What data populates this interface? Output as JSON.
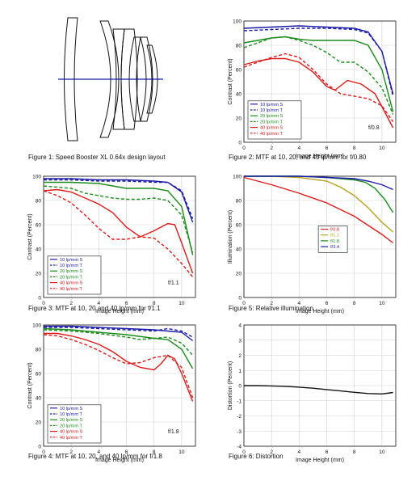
{
  "captions": {
    "fig1": "Figure 1:  Speed Booster XL 0.64x design layout",
    "fig2": "Figure 2:  MTF at 10, 20, and 40 lp/mm for f/0.80",
    "fig3": "Figure 3:  MTF at 10, 20 and 40 lp/mm for f/1.1",
    "fig4": "Figure 4:  MTF at 10, 20, and 40 lp/mm for f/1.8",
    "fig5": "Figure 5:  Relative illumination",
    "fig6": "Figure 6:  Distortion"
  },
  "chart_data": [
    {
      "id": "fig2",
      "type": "line",
      "xlabel": "Image Height (mm)",
      "ylabel": "Contrast (Percent)",
      "xlim": [
        0,
        11
      ],
      "ylim": [
        0,
        100
      ],
      "xticks": [
        0,
        2,
        4,
        6,
        8,
        10
      ],
      "yticks": [
        0,
        20,
        40,
        60,
        80,
        100
      ],
      "annotation": "f/0.8",
      "legend_position": "bottom-left",
      "series": [
        {
          "name": "10 lp/mm S",
          "color": "#1a1aa8",
          "dash": false,
          "x": [
            0,
            2,
            4,
            6,
            8,
            9,
            10,
            10.8
          ],
          "y": [
            94,
            95,
            96,
            95,
            94,
            91,
            75,
            40
          ]
        },
        {
          "name": "10 lp/mm T",
          "color": "#1a1aa8",
          "dash": true,
          "x": [
            0,
            2,
            4,
            6,
            8,
            9,
            10,
            10.8
          ],
          "y": [
            92,
            93,
            94,
            94,
            93,
            90,
            75,
            38
          ]
        },
        {
          "name": "20 lp/mm S",
          "color": "#1a8a1a",
          "dash": false,
          "x": [
            0,
            2,
            3,
            4,
            5,
            6,
            8,
            9,
            10,
            10.8
          ],
          "y": [
            82,
            86,
            87,
            85,
            84,
            84,
            84,
            80,
            60,
            25
          ]
        },
        {
          "name": "20 lp/mm T",
          "color": "#1a8a1a",
          "dash": true,
          "x": [
            0,
            2,
            3,
            4,
            5,
            6,
            7,
            8,
            9,
            10,
            10.8
          ],
          "y": [
            78,
            86,
            87,
            84,
            80,
            74,
            66,
            66,
            58,
            45,
            23
          ]
        },
        {
          "name": "40 lp/mm S",
          "color": "#dd1a1a",
          "dash": false,
          "x": [
            0,
            1,
            2,
            3,
            4,
            5,
            6,
            6.6,
            7.5,
            8.5,
            9.5,
            10.8
          ],
          "y": [
            64,
            67,
            69,
            69,
            66,
            58,
            46,
            43,
            51,
            48,
            40,
            12
          ]
        },
        {
          "name": "40 lp/mm T",
          "color": "#dd1a1a",
          "dash": true,
          "x": [
            0,
            1,
            2,
            3,
            4,
            5,
            6,
            7,
            8,
            9,
            10,
            10.8
          ],
          "y": [
            62,
            66,
            70,
            73,
            70,
            60,
            48,
            40,
            38,
            36,
            30,
            17
          ]
        }
      ]
    },
    {
      "id": "fig3",
      "type": "line",
      "xlabel": "Image Height (mm)",
      "ylabel": "Contrast (Percent)",
      "xlim": [
        0,
        11
      ],
      "ylim": [
        0,
        100
      ],
      "xticks": [
        0,
        2,
        4,
        6,
        8,
        10
      ],
      "yticks": [
        0,
        20,
        40,
        60,
        80,
        100
      ],
      "annotation": "f/1.1",
      "legend_position": "bottom-left",
      "series": [
        {
          "name": "10 lp/mm S",
          "color": "#1a1aa8",
          "dash": false,
          "x": [
            0,
            2,
            4,
            6,
            8,
            9,
            10,
            10.8
          ],
          "y": [
            98,
            98,
            97,
            97,
            96,
            95,
            87,
            62
          ]
        },
        {
          "name": "10 lp/mm T",
          "color": "#1a1aa8",
          "dash": true,
          "x": [
            0,
            2,
            4,
            6,
            8,
            9,
            10,
            10.8
          ],
          "y": [
            97,
            97,
            96,
            96,
            95,
            95,
            88,
            65
          ]
        },
        {
          "name": "20 lp/mm S",
          "color": "#1a8a1a",
          "dash": false,
          "x": [
            0,
            2,
            4,
            5,
            6,
            7,
            8,
            9,
            10,
            10.8
          ],
          "y": [
            95,
            95,
            94,
            92,
            90,
            90,
            90,
            88,
            75,
            35
          ]
        },
        {
          "name": "20 lp/mm T",
          "color": "#1a8a1a",
          "dash": true,
          "x": [
            0,
            2,
            3,
            4,
            5,
            6,
            7,
            8,
            9,
            10,
            10.8
          ],
          "y": [
            92,
            90,
            86,
            84,
            82,
            81,
            81,
            82,
            80,
            68,
            37
          ]
        },
        {
          "name": "40 lp/mm S",
          "color": "#dd1a1a",
          "dash": false,
          "x": [
            0,
            1,
            2,
            3,
            4,
            5,
            6,
            7,
            8,
            9,
            9.5,
            10,
            10.8
          ],
          "y": [
            88,
            89,
            87,
            82,
            77,
            70,
            58,
            50,
            55,
            61,
            60,
            45,
            20
          ]
        },
        {
          "name": "40 lp/mm T",
          "color": "#dd1a1a",
          "dash": true,
          "x": [
            0,
            1,
            2,
            3,
            4,
            5,
            6,
            7,
            8,
            9,
            10,
            10.8
          ],
          "y": [
            88,
            84,
            78,
            68,
            57,
            48,
            48,
            50,
            49,
            40,
            28,
            17
          ]
        }
      ]
    },
    {
      "id": "fig4",
      "type": "line",
      "xlabel": "Image Height (mm)",
      "ylabel": "Contrast (Percent)",
      "xlim": [
        0,
        11
      ],
      "ylim": [
        0,
        100
      ],
      "xticks": [
        0,
        2,
        4,
        6,
        8,
        10
      ],
      "yticks": [
        0,
        20,
        40,
        60,
        80,
        100
      ],
      "annotation": "f/1.8",
      "legend_position": "bottom-left",
      "series": [
        {
          "name": "10 lp/mm S",
          "color": "#1a1aa8",
          "dash": false,
          "x": [
            0,
            2,
            4,
            6,
            8,
            9,
            10,
            10.8
          ],
          "y": [
            99,
            99,
            98,
            97,
            96,
            95,
            94,
            87
          ]
        },
        {
          "name": "10 lp/mm T",
          "color": "#1a1aa8",
          "dash": true,
          "x": [
            0,
            2,
            4,
            6,
            8,
            9,
            10,
            10.8
          ],
          "y": [
            98,
            98,
            97,
            96,
            95,
            97,
            95,
            90
          ]
        },
        {
          "name": "20 lp/mm S",
          "color": "#1a8a1a",
          "dash": false,
          "x": [
            0,
            2,
            4,
            6,
            8,
            9,
            10,
            10.8
          ],
          "y": [
            97,
            96,
            94,
            92,
            89,
            88,
            80,
            64
          ]
        },
        {
          "name": "20 lp/mm T",
          "color": "#1a8a1a",
          "dash": true,
          "x": [
            0,
            2,
            4,
            6,
            7,
            8,
            9,
            10,
            10.8
          ],
          "y": [
            96,
            95,
            93,
            90,
            88,
            89,
            90,
            85,
            75
          ]
        },
        {
          "name": "40 lp/mm S",
          "color": "#dd1a1a",
          "dash": false,
          "x": [
            0,
            1,
            2,
            3,
            4,
            5,
            6,
            7,
            8,
            8.5,
            9,
            9.5,
            10,
            10.8
          ],
          "y": [
            93,
            93,
            91,
            88,
            84,
            78,
            70,
            65,
            63,
            68,
            75,
            72,
            60,
            37
          ]
        },
        {
          "name": "40 lp/mm T",
          "color": "#dd1a1a",
          "dash": true,
          "x": [
            0,
            1,
            2,
            3,
            4,
            5,
            6,
            7,
            8,
            9,
            10,
            10.8
          ],
          "y": [
            92,
            91,
            88,
            84,
            79,
            73,
            68,
            69,
            73,
            75,
            65,
            40
          ]
        }
      ]
    },
    {
      "id": "fig5",
      "type": "line",
      "xlabel": "Image Height (mm)",
      "ylabel": "Illumination (Percent)",
      "xlim": [
        0,
        11
      ],
      "ylim": [
        0,
        100
      ],
      "xticks": [
        0,
        2,
        4,
        6,
        8,
        10
      ],
      "yticks": [
        0,
        20,
        40,
        60,
        80,
        100
      ],
      "legend_position": "center",
      "series": [
        {
          "name": "f/0.8",
          "color": "#dd1a1a",
          "dash": false,
          "x": [
            0,
            2,
            4,
            6,
            8,
            10,
            10.8
          ],
          "y": [
            99,
            93,
            86,
            78,
            67,
            52,
            45
          ]
        },
        {
          "name": "f/1.1",
          "color": "#b8a020",
          "dash": false,
          "x": [
            0,
            2,
            4,
            6,
            7,
            8,
            9,
            10,
            10.8
          ],
          "y": [
            100,
            100,
            99,
            96,
            91,
            84,
            74,
            62,
            54
          ]
        },
        {
          "name": "f/1.8",
          "color": "#1a8a1a",
          "dash": false,
          "x": [
            0,
            2,
            4,
            6,
            7,
            8,
            8.8,
            9.5,
            10.2,
            10.8
          ],
          "y": [
            100,
            100,
            100,
            99,
            98,
            97,
            95,
            90,
            81,
            70
          ]
        },
        {
          "name": "f/3.4",
          "color": "#1a1aa8",
          "dash": false,
          "x": [
            0,
            2,
            4,
            6,
            8,
            9,
            10,
            10.8
          ],
          "y": [
            100,
            100,
            100,
            99,
            98,
            96,
            93,
            89
          ]
        }
      ]
    },
    {
      "id": "fig6",
      "type": "line",
      "xlabel": "Image Height (mm)",
      "ylabel": "Distortion (Percent)",
      "xlim": [
        0,
        11
      ],
      "ylim": [
        -4,
        4
      ],
      "xticks": [
        0,
        2,
        4,
        6,
        8,
        10
      ],
      "yticks": [
        -4,
        -3,
        -2,
        -1,
        0,
        1,
        2,
        3,
        4
      ],
      "series": [
        {
          "name": "",
          "color": "#111111",
          "dash": false,
          "x": [
            0,
            1,
            2,
            3,
            4,
            5,
            6,
            7,
            8,
            9,
            10,
            10.6,
            10.8
          ],
          "y": [
            0,
            0,
            -0.02,
            -0.05,
            -0.1,
            -0.17,
            -0.26,
            -0.35,
            -0.44,
            -0.52,
            -0.55,
            -0.48,
            -0.45
          ]
        }
      ]
    }
  ]
}
